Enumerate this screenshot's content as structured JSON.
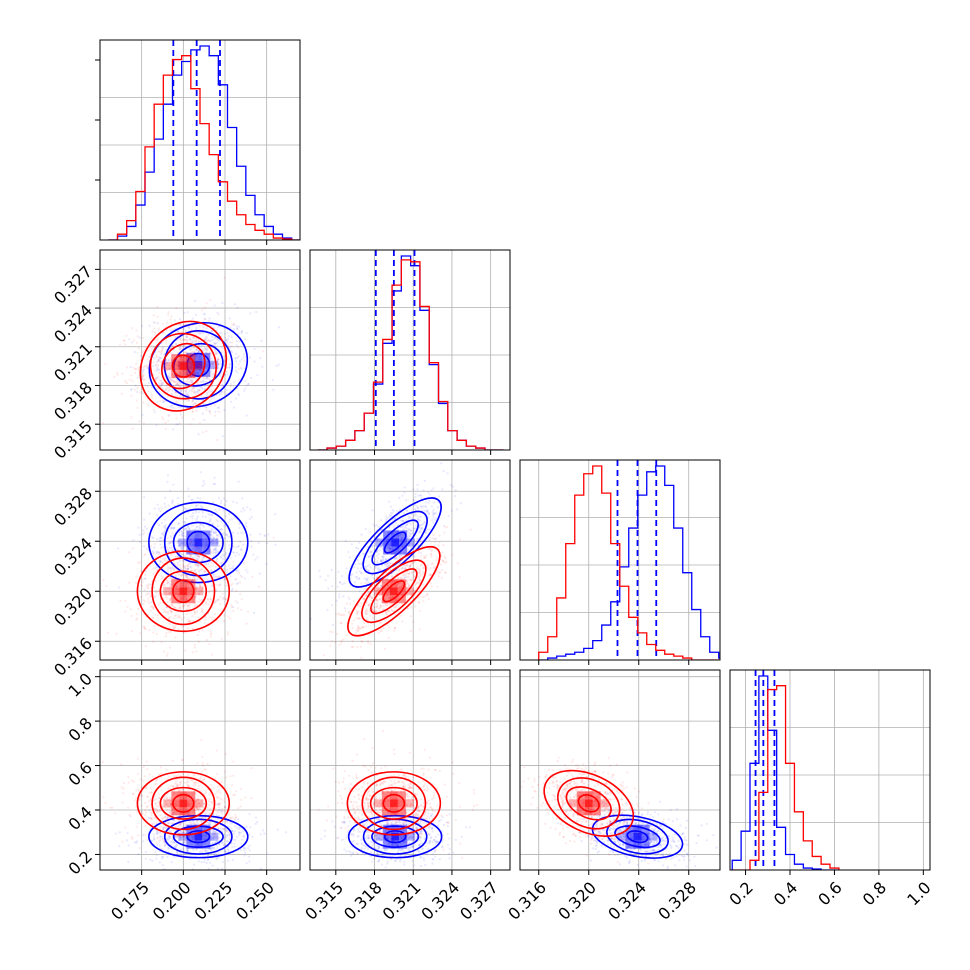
{
  "chart_data": {
    "type": "corner",
    "grid": true,
    "params": [
      {
        "range": [
          0.15,
          0.27
        ],
        "ticks": [
          0.175,
          0.2,
          0.225,
          0.25
        ],
        "tick_labels": [
          "0.175",
          "0.200",
          "0.225",
          "0.250"
        ]
      },
      {
        "range": [
          0.313,
          0.3285
        ],
        "ticks": [
          0.315,
          0.318,
          0.321,
          0.324,
          0.327
        ],
        "tick_labels": [
          "0.315",
          "0.318",
          "0.321",
          "0.324",
          "0.327"
        ]
      },
      {
        "range": [
          0.3145,
          0.3305
        ],
        "ticks": [
          0.316,
          0.32,
          0.324,
          0.328
        ],
        "tick_labels": [
          "0.316",
          "0.320",
          "0.324",
          "0.328"
        ]
      },
      {
        "range": [
          0.13,
          1.03
        ],
        "ticks": [
          0.2,
          0.4,
          0.6,
          0.8,
          1.0
        ],
        "tick_labels": [
          "0.2",
          "0.4",
          "0.6",
          "0.8",
          "1.0"
        ]
      }
    ],
    "series": [
      {
        "color": "#0000ff",
        "quantile_lines": [
          [
            0.194,
            0.208,
            0.222
          ],
          [
            0.3181,
            0.3195,
            0.3211
          ],
          [
            0.3223,
            0.3239,
            0.3254
          ],
          [
            0.245,
            0.28,
            0.33
          ]
        ],
        "means": [
          0.209,
          0.3196,
          0.3239,
          0.28
        ],
        "sds": [
          0.014,
          0.0017,
          0.0017,
          0.05
        ],
        "hist": [
          {
            "edges_start": 0.155,
            "step": 0.0055,
            "counts": [
              0,
              0.02,
              0.07,
              0.18,
              0.35,
              0.52,
              0.7,
              0.85,
              0.92,
              0.98,
              1.0,
              0.95,
              0.8,
              0.58,
              0.38,
              0.23,
              0.13,
              0.07,
              0.03,
              0.01,
              0
            ]
          },
          {
            "edges_start": 0.3136,
            "step": 0.00072,
            "counts": [
              0,
              0.01,
              0.02,
              0.05,
              0.1,
              0.19,
              0.34,
              0.55,
              0.82,
              1.0,
              0.95,
              0.72,
              0.44,
              0.24,
              0.1,
              0.05,
              0.02,
              0.01,
              0,
              0
            ]
          },
          {
            "edges_start": 0.316,
            "step": 0.00072,
            "counts": [
              0,
              0.01,
              0.02,
              0.03,
              0.04,
              0.06,
              0.1,
              0.18,
              0.3,
              0.48,
              0.68,
              0.85,
              0.97,
              1.0,
              0.9,
              0.68,
              0.45,
              0.26,
              0.12,
              0.04,
              0.01,
              0
            ]
          },
          {
            "edges_start": 0.14,
            "step": 0.04,
            "counts": [
              0.05,
              0.2,
              0.55,
              1.0,
              0.72,
              0.22,
              0.08,
              0.03,
              0.01,
              0.005,
              0,
              0
            ]
          }
        ]
      },
      {
        "color": "#ff0000",
        "means": [
          0.2,
          0.3195,
          0.32,
          0.43
        ],
        "sds": [
          0.013,
          0.0017,
          0.0017,
          0.075
        ],
        "hist": [
          {
            "edges_start": 0.155,
            "step": 0.0055,
            "counts": [
              0,
              0.03,
              0.1,
              0.25,
              0.48,
              0.7,
              0.85,
              0.93,
              0.95,
              0.78,
              0.6,
              0.44,
              0.3,
              0.2,
              0.13,
              0.08,
              0.05,
              0.03,
              0.01,
              0.005,
              0
            ]
          },
          {
            "edges_start": 0.3136,
            "step": 0.00072,
            "counts": [
              0,
              0.01,
              0.02,
              0.05,
              0.1,
              0.19,
              0.35,
              0.57,
              0.85,
              0.98,
              0.97,
              0.74,
              0.45,
              0.25,
              0.1,
              0.05,
              0.02,
              0.01,
              0,
              0
            ]
          },
          {
            "edges_start": 0.316,
            "step": 0.00072,
            "counts": [
              0.04,
              0.12,
              0.32,
              0.6,
              0.85,
              0.96,
              1.0,
              0.86,
              0.6,
              0.38,
              0.22,
              0.14,
              0.08,
              0.05,
              0.03,
              0.02,
              0.01,
              0,
              0,
              0,
              0,
              0
            ]
          },
          {
            "edges_start": 0.14,
            "step": 0.04,
            "counts": [
              0,
              0,
              0.05,
              0.4,
              0.93,
              0.95,
              0.55,
              0.3,
              0.15,
              0.07,
              0.03,
              0.01
            ]
          }
        ]
      }
    ],
    "correlations": {
      "0-1": 0.05,
      "0-2": 0.0,
      "1-2": 0.75,
      "0-3": 0.0,
      "1-3": 0.0,
      "2-3": -0.3
    }
  }
}
